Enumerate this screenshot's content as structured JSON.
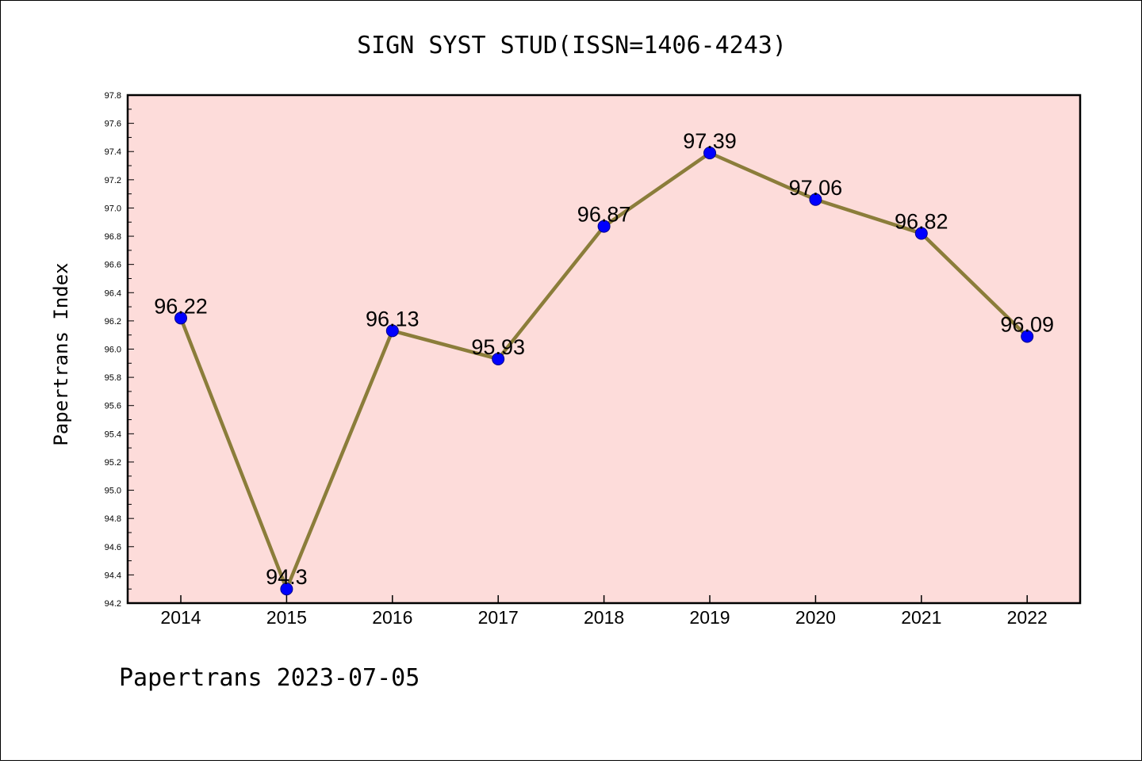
{
  "chart_data": {
    "type": "line",
    "title": "SIGN SYST STUD(ISSN=1406-4243)",
    "xlabel": "",
    "ylabel": "Papertrans Index",
    "categories": [
      "2014",
      "2015",
      "2016",
      "2017",
      "2018",
      "2019",
      "2020",
      "2021",
      "2022"
    ],
    "values": [
      96.22,
      94.3,
      96.13,
      95.93,
      96.87,
      97.39,
      97.06,
      96.82,
      96.09
    ],
    "data_labels": [
      "96.22",
      "94.3",
      "96.13",
      "95.93",
      "96.87",
      "97.39",
      "97.06",
      "96.82",
      "96.09"
    ],
    "ylim": [
      94.2,
      97.8
    ],
    "yticks": [
      "94.2",
      "94.4",
      "94.6",
      "94.8",
      "95.0",
      "95.2",
      "95.4",
      "95.6",
      "95.8",
      "96.0",
      "96.2",
      "96.4",
      "96.6",
      "96.8",
      "97.0",
      "97.2",
      "97.4",
      "97.6",
      "97.8"
    ],
    "grid": false,
    "legend": "none",
    "colors": {
      "plot_background": "#fddcda",
      "line": "#8b7d3a",
      "marker": "#0000ff"
    }
  },
  "footer": {
    "text": "Papertrans 2023-07-05"
  }
}
